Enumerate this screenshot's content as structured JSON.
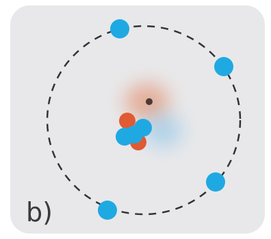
{
  "label": "b)"
}
